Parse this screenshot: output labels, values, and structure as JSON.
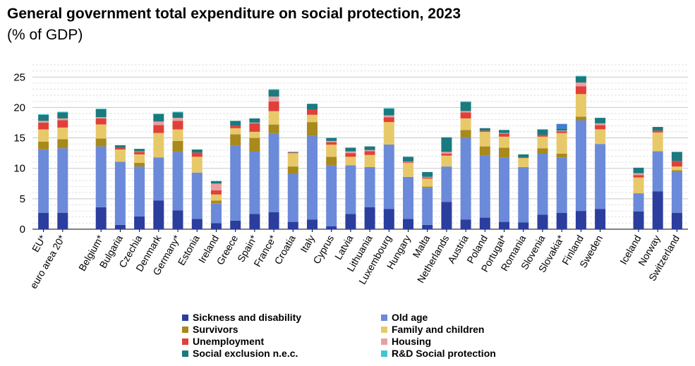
{
  "chart_data": {
    "type": "bar",
    "stacked": true,
    "title": "General government total expenditure on social protection, 2023",
    "subtitle": "(% of GDP)",
    "xlabel": "",
    "ylabel": "",
    "ylim": [
      0,
      27
    ],
    "yticks": [
      0,
      5,
      10,
      15,
      20,
      25
    ],
    "grid": true,
    "legend_position": "bottom",
    "categories": [
      "EU*",
      "euro area 20*",
      "",
      "Belgium*",
      "Bulgaria",
      "Czechia",
      "Denmark",
      "Germany*",
      "Estonia",
      "Ireland",
      "Greece",
      "Spain*",
      "France*",
      "Croatia",
      "Italy",
      "Cyprus",
      "Latvia",
      "Lithuania",
      "Luxembourg",
      "Hungary",
      "Malta",
      "Netherlands",
      "Austria",
      "Poland",
      "Portugal*",
      "Romania",
      "Slovenia",
      "Slovakia*",
      "Finland",
      "Sweden",
      "",
      "Iceland",
      "Norway",
      "Switzerland"
    ],
    "series": [
      {
        "name": "Sickness and disability",
        "color": "#2b3e9e",
        "values": [
          2.7,
          2.7,
          null,
          3.6,
          0.7,
          2.1,
          4.7,
          3.1,
          1.7,
          1.0,
          1.4,
          2.5,
          2.8,
          1.2,
          1.6,
          0.5,
          2.5,
          3.6,
          3.3,
          1.7,
          0.7,
          4.5,
          1.6,
          1.9,
          1.2,
          1.1,
          2.4,
          2.7,
          3.0,
          3.3,
          null,
          2.9,
          6.2,
          2.7
        ]
      },
      {
        "name": "Old age",
        "color": "#6b8ad9",
        "values": [
          10.4,
          10.6,
          null,
          10.0,
          10.4,
          8.2,
          7.1,
          9.6,
          7.6,
          3.2,
          12.3,
          10.3,
          13.0,
          7.9,
          13.7,
          10.0,
          8.0,
          6.6,
          10.6,
          6.9,
          6.1,
          5.8,
          13.4,
          10.2,
          10.6,
          9.1,
          10.0,
          9.1,
          14.9,
          10.7,
          null,
          3.0,
          6.6,
          6.7
        ]
      },
      {
        "name": "Survivors",
        "color": "#a8891c",
        "values": [
          1.3,
          1.5,
          null,
          1.3,
          0.0,
          0.6,
          0.0,
          1.8,
          0.0,
          0.5,
          1.9,
          2.2,
          1.4,
          1.2,
          2.3,
          1.4,
          0.0,
          0.0,
          0.0,
          0.0,
          0.2,
          0.0,
          1.3,
          1.5,
          1.6,
          0.0,
          0.9,
          0.6,
          0.6,
          0.0,
          null,
          0.0,
          0.0,
          0.3
        ]
      },
      {
        "name": "Family and children",
        "color": "#e8c96a",
        "values": [
          2.0,
          1.9,
          null,
          2.3,
          2.0,
          1.4,
          4.0,
          1.9,
          2.6,
          1.0,
          1.0,
          1.0,
          2.2,
          2.2,
          1.2,
          2.0,
          1.4,
          2.0,
          3.7,
          2.3,
          1.3,
          1.8,
          1.9,
          2.4,
          1.8,
          1.5,
          1.9,
          3.4,
          3.7,
          2.4,
          null,
          2.6,
          3.1,
          0.6
        ]
      },
      {
        "name": "Unemployment",
        "color": "#e0403a",
        "values": [
          1.1,
          1.2,
          null,
          1.0,
          0.3,
          0.4,
          1.3,
          1.4,
          0.7,
          0.7,
          0.4,
          1.4,
          1.6,
          0.1,
          0.9,
          0.4,
          0.6,
          0.6,
          0.8,
          0.1,
          0.2,
          0.3,
          1.0,
          0.2,
          0.5,
          0.1,
          0.3,
          0.3,
          1.3,
          0.7,
          null,
          0.4,
          0.3,
          0.9
        ]
      },
      {
        "name": "Housing",
        "color": "#e8a0a0",
        "values": [
          0.3,
          0.3,
          null,
          0.2,
          0.0,
          0.1,
          0.6,
          0.5,
          0.0,
          1.1,
          0.0,
          0.1,
          0.8,
          0.0,
          0.0,
          0.2,
          0.3,
          0.2,
          0.3,
          0.1,
          0.1,
          0.3,
          0.2,
          0.0,
          0.1,
          0.0,
          0.0,
          0.1,
          0.6,
          0.3,
          null,
          0.3,
          0.0,
          0.0
        ]
      },
      {
        "name": "Social exclusion n.e.c.",
        "color": "#1a7a7e",
        "values": [
          1.0,
          1.0,
          null,
          1.3,
          0.4,
          0.4,
          1.2,
          0.9,
          0.5,
          0.4,
          0.8,
          0.7,
          1.1,
          0.1,
          0.9,
          0.5,
          0.6,
          0.6,
          1.1,
          0.8,
          0.8,
          2.4,
          1.5,
          0.4,
          0.5,
          0.5,
          0.9,
          0.3,
          1.0,
          0.9,
          null,
          0.9,
          0.6,
          1.5
        ]
      },
      {
        "name": "R&D Social protection",
        "color": "#3fc6d4",
        "values": [
          0.1,
          0.1,
          null,
          0.1,
          0.0,
          0.0,
          0.1,
          0.1,
          0.0,
          0.0,
          0.0,
          0.0,
          0.1,
          0.0,
          0.0,
          0.0,
          0.0,
          0.0,
          0.1,
          0.0,
          0.0,
          0.0,
          0.1,
          0.0,
          0.0,
          0.0,
          0.0,
          0.0,
          0.1,
          0.0,
          null,
          0.0,
          0.0,
          0.0
        ]
      }
    ]
  },
  "slovakia_extra": {
    "name": "Slovakia top segment",
    "color": "#3d7fd0",
    "value": 0.8
  }
}
